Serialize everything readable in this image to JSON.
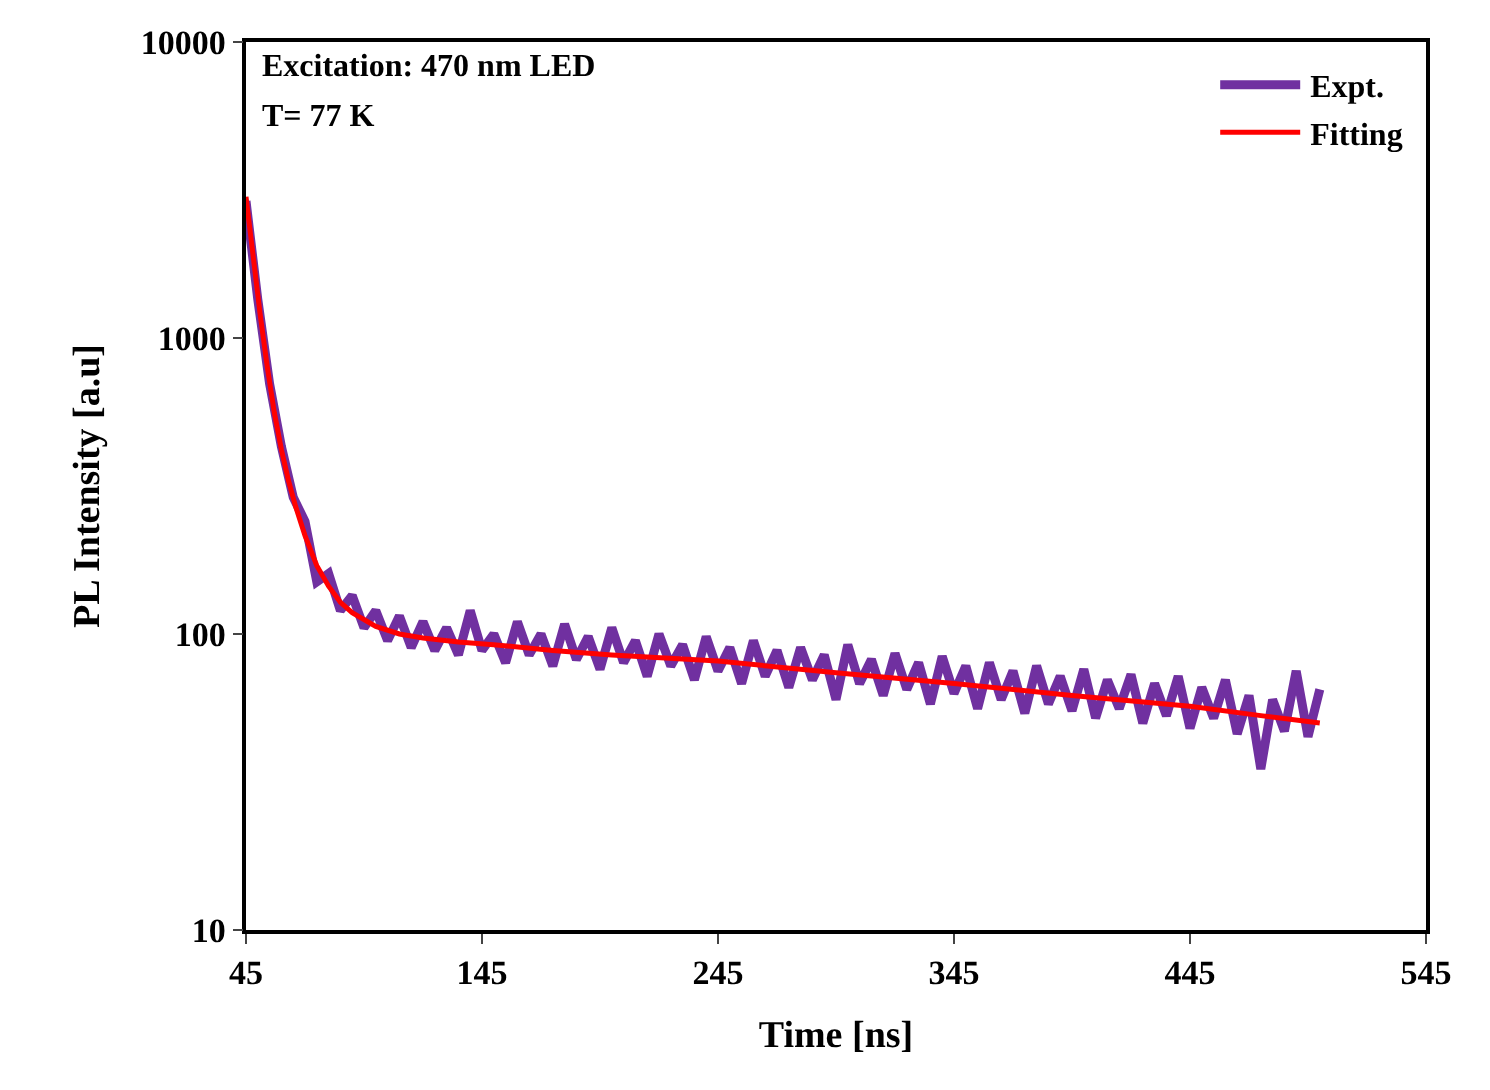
{
  "chart_data": {
    "type": "line",
    "xlabel": "Time [ns]",
    "ylabel": "PL Intensity [a.u]",
    "annotations": [
      "Excitation: 470 nm LED",
      "T= 77 K"
    ],
    "log": "y",
    "xlim": [
      45,
      545
    ],
    "xticks": [
      45,
      145,
      245,
      345,
      445,
      545
    ],
    "ylim": [
      10,
      10000
    ],
    "yticks": [
      10,
      100,
      1000,
      10000
    ],
    "legend": "top right",
    "marker": "none",
    "line_style": "solid",
    "series": [
      {
        "name": "Expt.",
        "color": "#7030a0",
        "x": [
          45,
          50,
          55,
          60,
          65,
          70,
          75,
          80,
          85,
          90,
          95,
          100,
          105,
          110,
          115,
          120,
          125,
          130,
          135,
          140,
          145,
          150,
          155,
          160,
          165,
          170,
          175,
          180,
          185,
          190,
          195,
          200,
          205,
          210,
          215,
          220,
          225,
          230,
          235,
          240,
          245,
          250,
          255,
          260,
          265,
          270,
          275,
          280,
          285,
          290,
          295,
          300,
          305,
          310,
          315,
          320,
          325,
          330,
          335,
          340,
          345,
          350,
          355,
          360,
          365,
          370,
          375,
          380,
          385,
          390,
          395,
          400,
          405,
          410,
          415,
          420,
          425,
          430,
          435,
          440,
          445,
          450,
          455,
          460,
          465,
          470,
          475,
          480,
          485,
          490,
          495,
          500
        ],
        "values": [
          2900,
          1350,
          700,
          430,
          290,
          240,
          150,
          160,
          120,
          135,
          105,
          120,
          95,
          115,
          90,
          110,
          88,
          105,
          85,
          120,
          88,
          100,
          80,
          110,
          85,
          100,
          78,
          108,
          82,
          98,
          76,
          105,
          80,
          95,
          72,
          100,
          78,
          92,
          70,
          98,
          75,
          90,
          68,
          95,
          72,
          88,
          66,
          90,
          70,
          85,
          60,
          92,
          68,
          82,
          62,
          86,
          65,
          80,
          58,
          84,
          63,
          78,
          56,
          80,
          60,
          75,
          54,
          78,
          58,
          72,
          55,
          76,
          52,
          70,
          56,
          73,
          50,
          68,
          53,
          72,
          48,
          66,
          52,
          70,
          46,
          62,
          35,
          60,
          47,
          75,
          45,
          65
        ]
      },
      {
        "name": "Fitting",
        "color": "#ff0000",
        "x": [
          45,
          48,
          51,
          54,
          57,
          60,
          63,
          66,
          70,
          75,
          80,
          85,
          90,
          100,
          110,
          120,
          135,
          150,
          175,
          200,
          245,
          295,
          345,
          395,
          445,
          475,
          500
        ],
        "values": [
          3000,
          1900,
          1200,
          800,
          560,
          420,
          330,
          270,
          215,
          170,
          145,
          128,
          118,
          106,
          100,
          97,
          94,
          92,
          88,
          85,
          81,
          74,
          68,
          62,
          57,
          53,
          50
        ]
      }
    ]
  }
}
